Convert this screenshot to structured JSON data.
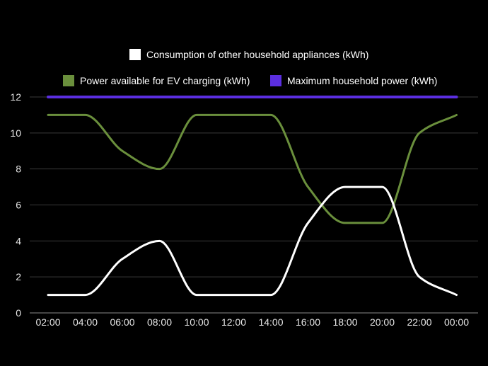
{
  "chart_data": {
    "type": "line",
    "title": "",
    "xlabel": "",
    "ylabel": "",
    "ylim": [
      0,
      12
    ],
    "yticks": [
      0,
      2,
      4,
      6,
      8,
      10,
      12
    ],
    "grid": true,
    "legend_placement": "top",
    "categories": [
      "02:00",
      "04:00",
      "06:00",
      "08:00",
      "10:00",
      "12:00",
      "14:00",
      "16:00",
      "18:00",
      "20:00",
      "22:00",
      "00:00"
    ],
    "series": [
      {
        "name": "Consumption of other household appliances (kWh)",
        "color": "#ffffff",
        "values": [
          1,
          1,
          3,
          4,
          1,
          1,
          1,
          5,
          7,
          7,
          2,
          1
        ]
      },
      {
        "name": "Power available for EV charging (kWh)",
        "color": "#6a8f3c",
        "values": [
          11,
          11,
          9,
          8,
          11,
          11,
          11,
          7,
          5,
          5,
          10,
          11
        ]
      },
      {
        "name": "Maximum household power (kWh)",
        "color": "#5b2ee0",
        "values": [
          12,
          12,
          12,
          12,
          12,
          12,
          12,
          12,
          12,
          12,
          12,
          12
        ]
      }
    ]
  }
}
